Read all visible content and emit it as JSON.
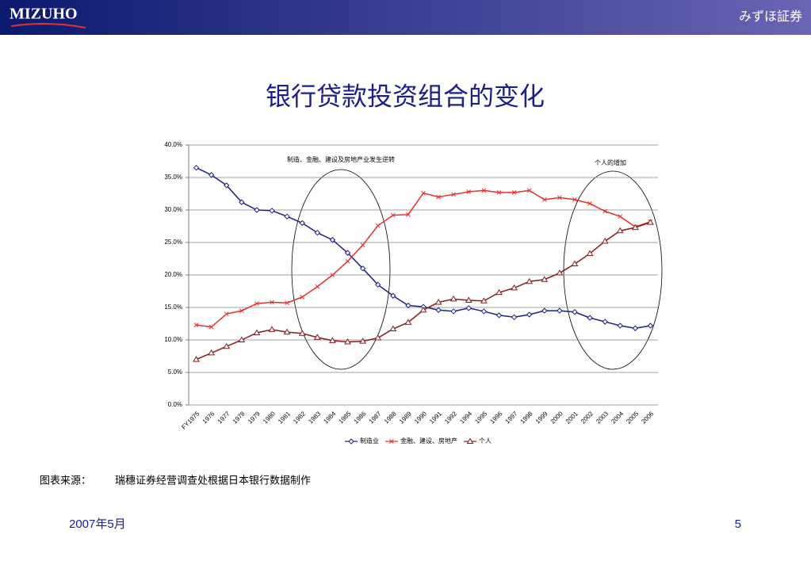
{
  "header": {
    "logo": "MIZUHO",
    "company": "みずほ証券"
  },
  "chart_data": {
    "type": "line",
    "title": "银行贷款投资组合的变化",
    "categories": [
      "FY1975",
      "1976",
      "1977",
      "1978",
      "1979",
      "1980",
      "1981",
      "1982",
      "1983",
      "1984",
      "1985",
      "1986",
      "1987",
      "1988",
      "1989",
      "1990",
      "1991",
      "1992",
      "1994",
      "1995",
      "1996",
      "1997",
      "1998",
      "1999",
      "2000",
      "2001",
      "2002",
      "2003",
      "2004",
      "2005",
      "2006"
    ],
    "series": [
      {
        "name": "制造业",
        "color": "#1a1f8c",
        "marker": "diamond",
        "values": [
          36.5,
          35.4,
          33.8,
          31.2,
          30.0,
          29.9,
          29.0,
          28.0,
          26.5,
          25.4,
          23.4,
          21.0,
          18.5,
          16.8,
          15.3,
          15.1,
          14.6,
          14.4,
          14.9,
          14.4,
          13.8,
          13.5,
          13.9,
          14.5,
          14.5,
          14.3,
          13.4,
          12.8,
          12.2,
          11.8,
          12.2
        ]
      },
      {
        "name": "金融、建设、房地产",
        "color": "#e8302a",
        "marker": "x",
        "values": [
          12.3,
          12.0,
          14.0,
          14.5,
          15.6,
          15.8,
          15.7,
          16.6,
          18.2,
          20.0,
          22.1,
          24.6,
          27.6,
          29.2,
          29.3,
          32.6,
          32.0,
          32.4,
          32.8,
          33.0,
          32.7,
          32.7,
          33.0,
          31.6,
          31.9,
          31.6,
          31.0,
          29.8,
          29.0,
          27.4,
          28.2
        ]
      },
      {
        "name": "个人",
        "color": "#8b1a1a",
        "marker": "triangle",
        "values": [
          7.0,
          8.0,
          9.0,
          10.0,
          11.1,
          11.6,
          11.2,
          11.0,
          10.4,
          9.9,
          9.7,
          9.8,
          10.3,
          11.7,
          12.7,
          14.6,
          15.8,
          16.3,
          16.1,
          16.0,
          17.3,
          18.0,
          19.0,
          19.3,
          20.3,
          21.7,
          23.3,
          25.2,
          26.8,
          27.3,
          28.1
        ]
      }
    ],
    "ylim": [
      0,
      40
    ],
    "yticks": [
      {
        "value": 0,
        "label": "0.0%"
      },
      {
        "value": 5,
        "label": "5.0%"
      },
      {
        "value": 10,
        "label": "10.0%"
      },
      {
        "value": 15,
        "label": "15.0%"
      },
      {
        "value": 20,
        "label": "20.0%"
      },
      {
        "value": 25,
        "label": "25.0%"
      },
      {
        "value": 30,
        "label": "30.0%"
      },
      {
        "value": 35,
        "label": "35.0%"
      },
      {
        "value": 40,
        "label": "40.0%"
      }
    ],
    "grid": true,
    "legend": "bottom",
    "annotations": [
      "制造、金融、建设及房地产业发生逆转",
      "个人的增加"
    ]
  },
  "source": {
    "label": "图表来源：",
    "text": "瑞穗证券经营调查处根据日本银行数据制作"
  },
  "footer": {
    "date": "2007年5月",
    "page": "5"
  }
}
